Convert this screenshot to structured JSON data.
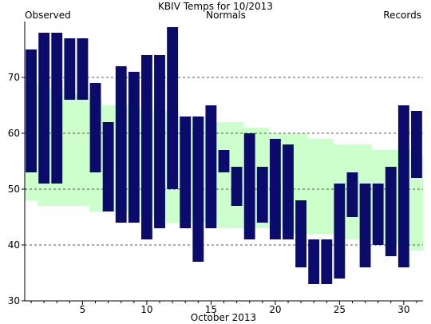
{
  "chart_data": {
    "type": "bar",
    "title": "KBIV Temps for 10/2013",
    "xlabel": "October 2013",
    "ylabel": "",
    "ylim": [
      30,
      80
    ],
    "xlim": [
      0.5,
      31.5
    ],
    "y_ticks": [
      30,
      40,
      50,
      60,
      70
    ],
    "y_gridlines": [
      40,
      50,
      60,
      70
    ],
    "x_ticks": [
      5,
      10,
      15,
      20,
      25,
      30
    ],
    "grid": "horizontal dashed",
    "legend": {
      "observed": "Observed",
      "normals": "Normals",
      "records": "Records"
    },
    "days": [
      1,
      2,
      3,
      4,
      5,
      6,
      7,
      8,
      9,
      10,
      11,
      12,
      13,
      14,
      15,
      16,
      17,
      18,
      19,
      20,
      21,
      22,
      23,
      24,
      25,
      26,
      27,
      28,
      29,
      30,
      31
    ],
    "series": [
      {
        "name": "Observed",
        "low": [
          53,
          51,
          51,
          66,
          66,
          53,
          46,
          44,
          44,
          41,
          43,
          50,
          43,
          37,
          43,
          53,
          47,
          41,
          44,
          41,
          41,
          36,
          33,
          33,
          34,
          45,
          36,
          40,
          38,
          36,
          52
        ],
        "high": [
          75,
          78,
          78,
          77,
          77,
          69,
          62,
          72,
          71,
          74,
          74,
          79,
          63,
          63,
          65,
          57,
          54,
          60,
          54,
          59,
          58,
          48,
          41,
          41,
          51,
          53,
          51,
          51,
          54,
          65,
          64
        ]
      },
      {
        "name": "Normals",
        "low": [
          48,
          47,
          47,
          47,
          47,
          46,
          46,
          46,
          45,
          45,
          45,
          44,
          44,
          44,
          44,
          43,
          43,
          43,
          43,
          43,
          42,
          42,
          42,
          42,
          41,
          41,
          41,
          41,
          40,
          40,
          39
        ],
        "high": [
          69,
          68,
          68,
          67,
          67,
          66,
          65,
          65,
          65,
          64,
          64,
          64,
          63,
          63,
          62,
          62,
          62,
          61,
          61,
          60,
          60,
          60,
          59,
          59,
          58,
          58,
          58,
          57,
          57,
          57,
          56
        ]
      }
    ],
    "colors": {
      "observed": "#0b0b6b",
      "normals": "#ccffcc",
      "legend_observed": "#0b0b6b",
      "legend_normals": "#006600",
      "legend_records": "#c080d0",
      "axis": "#000000",
      "grid": "#555555"
    }
  }
}
